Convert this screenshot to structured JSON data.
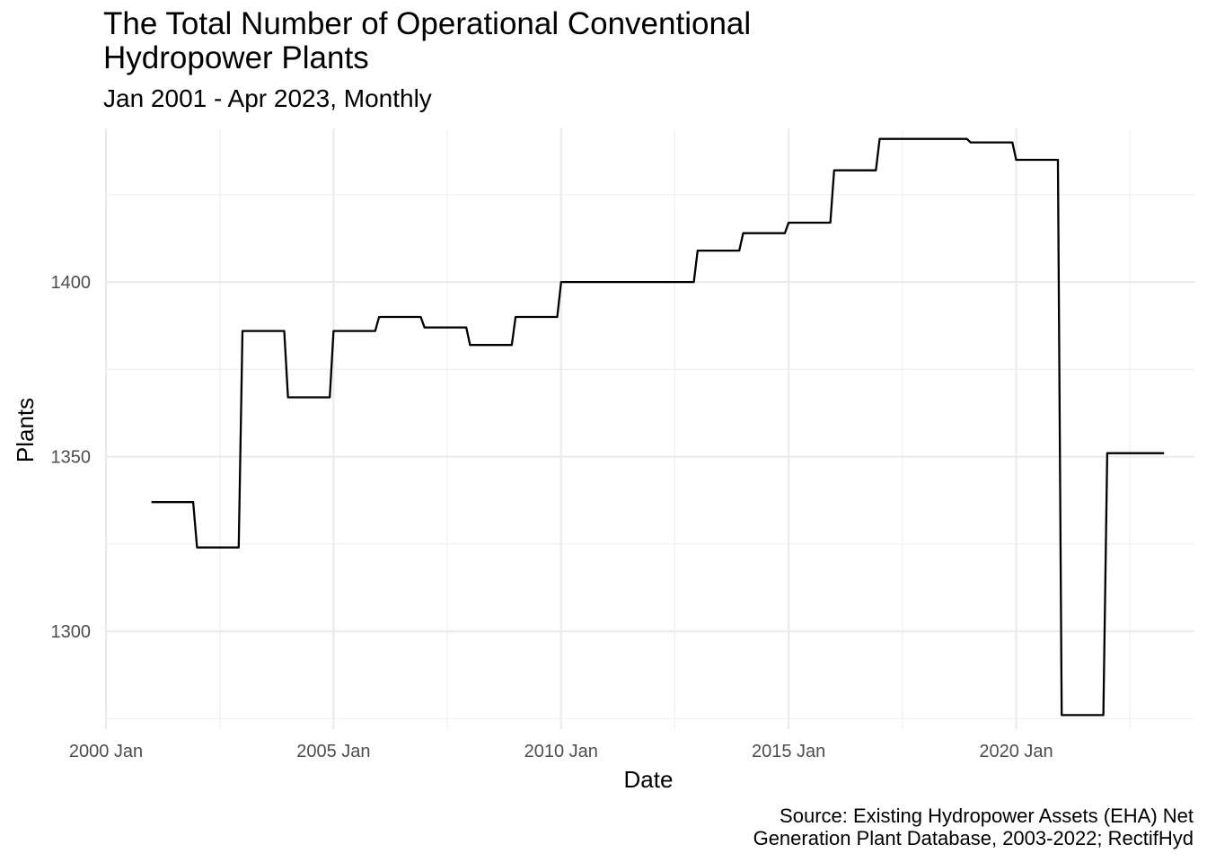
{
  "chart_data": {
    "type": "line",
    "title_lines": [
      "The Total Number of Operational Conventional",
      "Hydropower Plants"
    ],
    "subtitle": "Jan 2001 - Apr 2023, Monthly",
    "xlabel": "Date",
    "ylabel": "Plants",
    "caption_lines": [
      "Source: Existing Hydropower Assets (EHA) Net",
      "Generation Plant Database, 2003-2022; RectifHyd"
    ],
    "x_ticks": [
      "2000 Jan",
      "2005 Jan",
      "2010 Jan",
      "2015 Jan",
      "2020 Jan"
    ],
    "y_ticks": [
      "1300",
      "1350",
      "1400"
    ],
    "xlim": [
      "2000-01",
      "2023-12"
    ],
    "ylim": [
      1272,
      1444
    ],
    "grid": true,
    "line_color": "#000000",
    "series": [
      {
        "points": [
          [
            "2001-01",
            1337
          ],
          [
            "2001-12",
            1337
          ],
          [
            "2002-01",
            1324
          ],
          [
            "2002-12",
            1324
          ],
          [
            "2003-01",
            1386
          ],
          [
            "2003-12",
            1386
          ],
          [
            "2004-01",
            1367
          ],
          [
            "2004-12",
            1367
          ],
          [
            "2005-01",
            1386
          ],
          [
            "2005-12",
            1386
          ],
          [
            "2006-01",
            1390
          ],
          [
            "2006-12",
            1390
          ],
          [
            "2007-01",
            1387
          ],
          [
            "2007-12",
            1387
          ],
          [
            "2008-01",
            1382
          ],
          [
            "2008-12",
            1382
          ],
          [
            "2009-01",
            1390
          ],
          [
            "2009-12",
            1390
          ],
          [
            "2010-01",
            1400
          ],
          [
            "2012-12",
            1400
          ],
          [
            "2013-01",
            1409
          ],
          [
            "2013-12",
            1409
          ],
          [
            "2014-01",
            1414
          ],
          [
            "2014-12",
            1414
          ],
          [
            "2015-01",
            1417
          ],
          [
            "2015-12",
            1417
          ],
          [
            "2016-01",
            1432
          ],
          [
            "2016-12",
            1432
          ],
          [
            "2017-01",
            1441
          ],
          [
            "2018-12",
            1441
          ],
          [
            "2019-01",
            1440
          ],
          [
            "2019-12",
            1440
          ],
          [
            "2020-01",
            1435
          ],
          [
            "2020-12",
            1435
          ],
          [
            "2021-01",
            1276
          ],
          [
            "2021-12",
            1276
          ],
          [
            "2022-01",
            1351
          ],
          [
            "2023-04",
            1351
          ]
        ]
      }
    ]
  }
}
